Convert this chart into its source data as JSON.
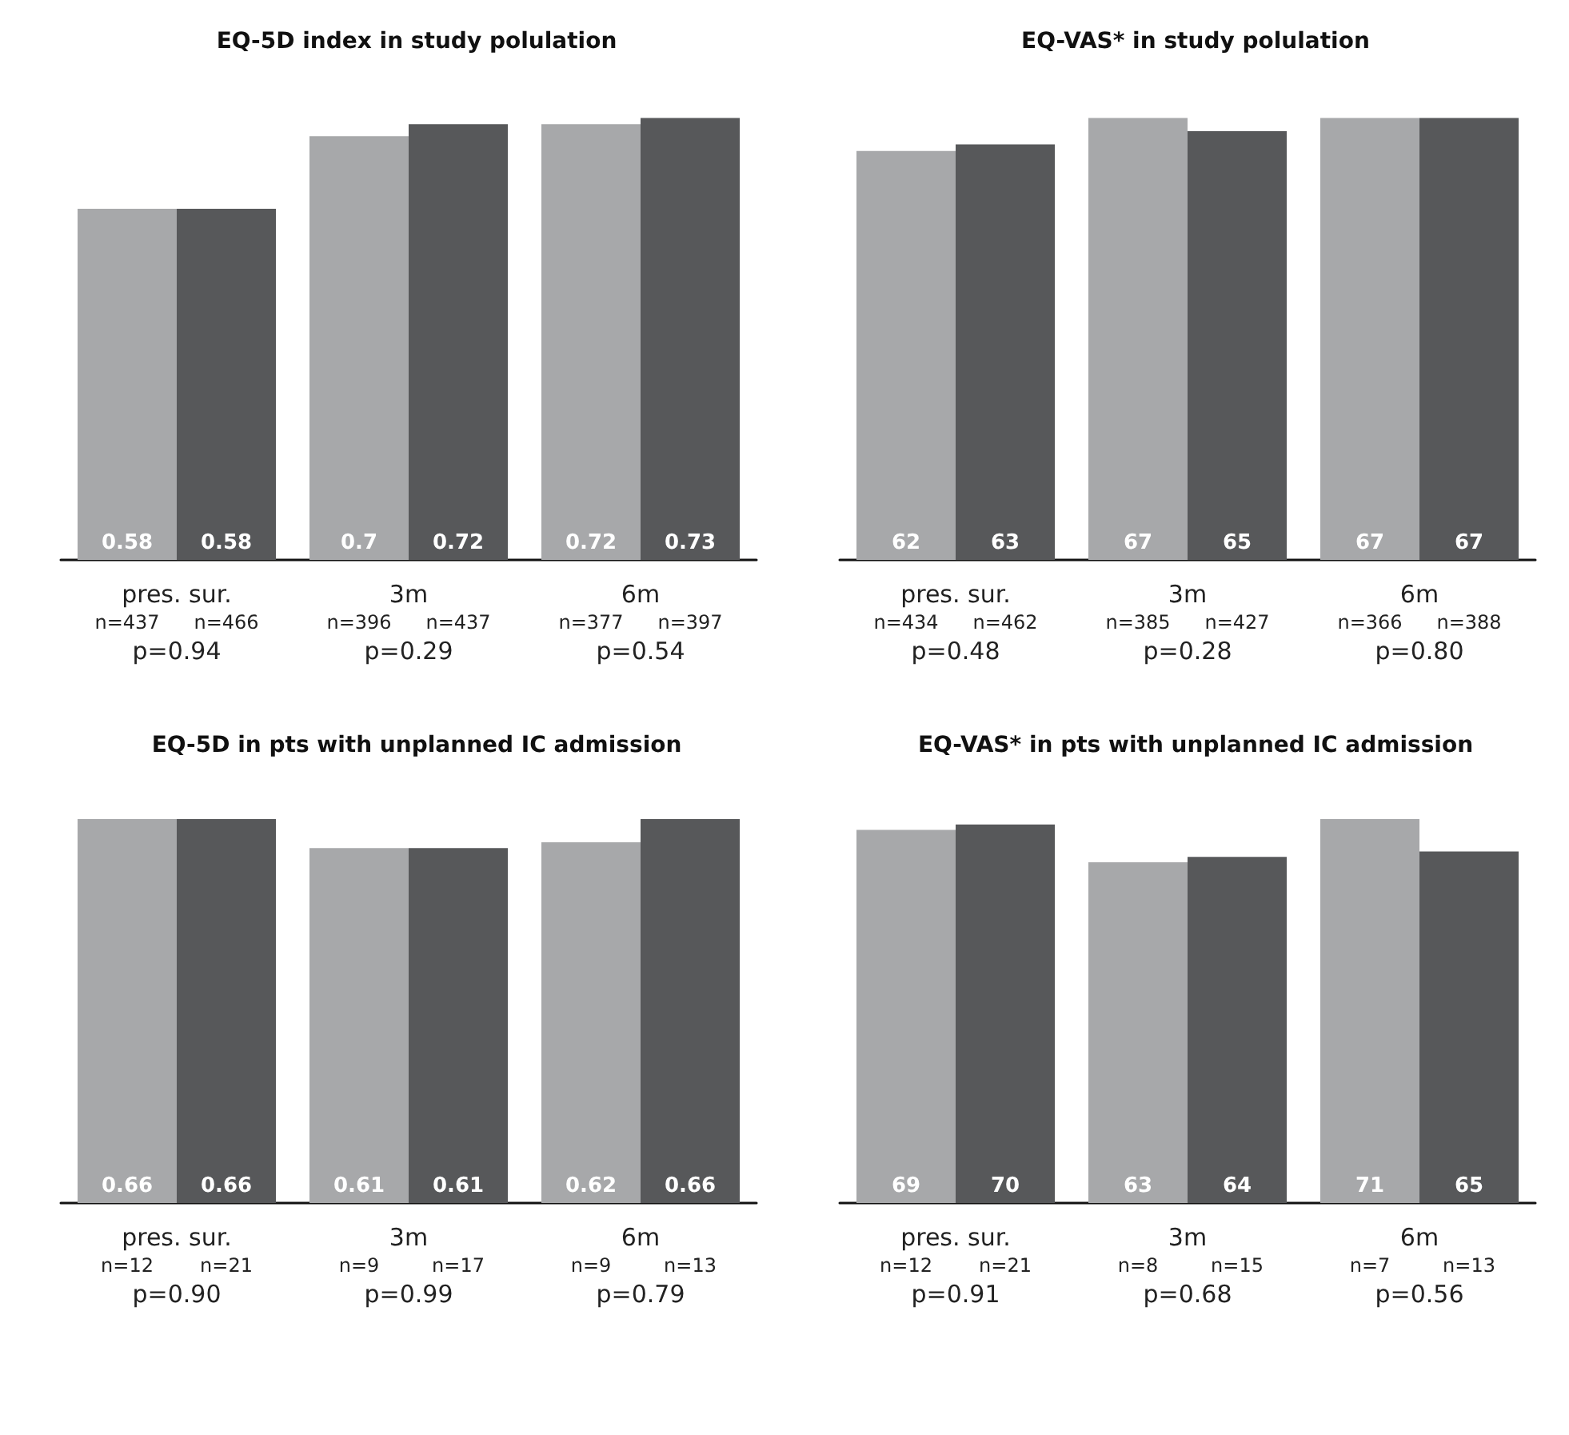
{
  "chart_data": [
    {
      "type": "bar",
      "title": "EQ-5D index in study polulation",
      "categories": [
        "pres. sur.",
        "3m",
        "6m"
      ],
      "data_labels": true,
      "series": [
        {
          "color": "#a7a8aa",
          "values": [
            0.58,
            0.7,
            0.72
          ]
        },
        {
          "color": "#57585a",
          "values": [
            0.58,
            0.72,
            0.73
          ]
        }
      ],
      "annotations": [
        "n=437",
        "n=466",
        "p=0.94",
        "n=396",
        "n=437",
        "p=0.29",
        "n=377",
        "n=397",
        "p=0.54"
      ]
    },
    {
      "type": "bar",
      "title": "EQ-VAS* in study polulation",
      "categories": [
        "pres. sur.",
        "3m",
        "6m"
      ],
      "data_labels": true,
      "series": [
        {
          "color": "#a7a8aa",
          "values": [
            62,
            67,
            67
          ]
        },
        {
          "color": "#57585a",
          "values": [
            63,
            65,
            67
          ]
        }
      ],
      "annotations": [
        "n=434",
        "n=462",
        "p=0.48",
        "n=385",
        "n=427",
        "p=0.28",
        "n=366",
        "n=388",
        "p=0.80"
      ]
    },
    {
      "type": "bar",
      "title": "EQ-5D in pts with unplanned IC admission",
      "categories": [
        "pres. sur.",
        "3m",
        "6m"
      ],
      "data_labels": true,
      "series": [
        {
          "color": "#a7a8aa",
          "values": [
            0.66,
            0.61,
            0.62
          ]
        },
        {
          "color": "#57585a",
          "values": [
            0.66,
            0.61,
            0.66
          ]
        }
      ],
      "annotations": [
        "n=12",
        "n=21",
        "p=0.90",
        "n=9",
        "n=17",
        "p=0.99",
        "n=9",
        "n=13",
        "p=0.79"
      ]
    },
    {
      "type": "bar",
      "title": "EQ-VAS* in pts with unplanned IC admission",
      "categories": [
        "pres. sur.",
        "3m",
        "6m"
      ],
      "data_labels": true,
      "series": [
        {
          "color": "#a7a8aa",
          "values": [
            69,
            63,
            71
          ]
        },
        {
          "color": "#57585a",
          "values": [
            70,
            64,
            65
          ]
        }
      ],
      "annotations": [
        "n=12",
        "n=21",
        "p=0.91",
        "n=8",
        "n=15",
        "p=0.68",
        "n=7",
        "n=13",
        "p=0.56"
      ]
    }
  ]
}
